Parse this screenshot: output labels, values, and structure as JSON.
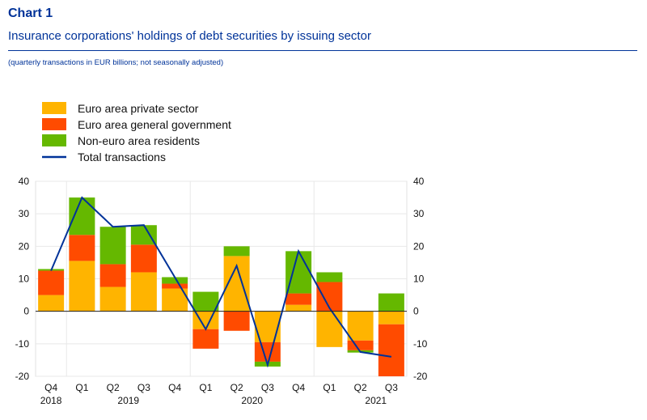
{
  "header": {
    "chart_number": "Chart 1",
    "title": "Insurance corporations' holdings of debt securities by issuing sector",
    "subtitle": "(quarterly transactions in EUR billions; not seasonally adjusted)"
  },
  "colors": {
    "private": "#FFB400",
    "government": "#FF4B00",
    "non_euro": "#65B800",
    "total": "#003299",
    "title": "#003399"
  },
  "chart_data": {
    "type": "bar",
    "stacked": true,
    "title": "Insurance corporations' holdings of debt securities by issuing sector",
    "ylim": [
      -20,
      40
    ],
    "yticks": [
      -20,
      -10,
      0,
      10,
      20,
      30,
      40
    ],
    "grid": true,
    "legend_position": "top-left",
    "categories": [
      "Q4",
      "Q1",
      "Q2",
      "Q3",
      "Q4",
      "Q1",
      "Q2",
      "Q3",
      "Q4",
      "Q1",
      "Q2",
      "Q3"
    ],
    "year_labels": [
      {
        "label": "2018",
        "index": 0
      },
      {
        "label": "2019",
        "index": 2.5
      },
      {
        "label": "2020",
        "index": 6.5
      },
      {
        "label": "2021",
        "index": 10.5
      }
    ],
    "series": [
      {
        "name": "Euro area private sector",
        "kind": "bar",
        "color": "#FFB400",
        "values": [
          5,
          15.5,
          7.5,
          12,
          7,
          -5.5,
          17,
          -9.5,
          2,
          -11,
          -9,
          -4
        ]
      },
      {
        "name": "Euro area general government",
        "kind": "bar",
        "color": "#FF4B00",
        "values": [
          7.5,
          8,
          7,
          8.5,
          1.5,
          -6,
          -6,
          -6,
          3.5,
          9,
          -3,
          -16
        ]
      },
      {
        "name": "Non-euro area residents",
        "kind": "bar",
        "color": "#65B800",
        "values": [
          0.5,
          11.5,
          11.5,
          6,
          2,
          6,
          3,
          -1.5,
          13,
          3,
          -0.7,
          5.5
        ]
      },
      {
        "name": "Total transactions",
        "kind": "line",
        "color": "#003299",
        "values": [
          12.5,
          35,
          26,
          26.5,
          10.5,
          -5.5,
          14,
          -16.5,
          18.5,
          1,
          -12.5,
          -14
        ]
      }
    ]
  }
}
